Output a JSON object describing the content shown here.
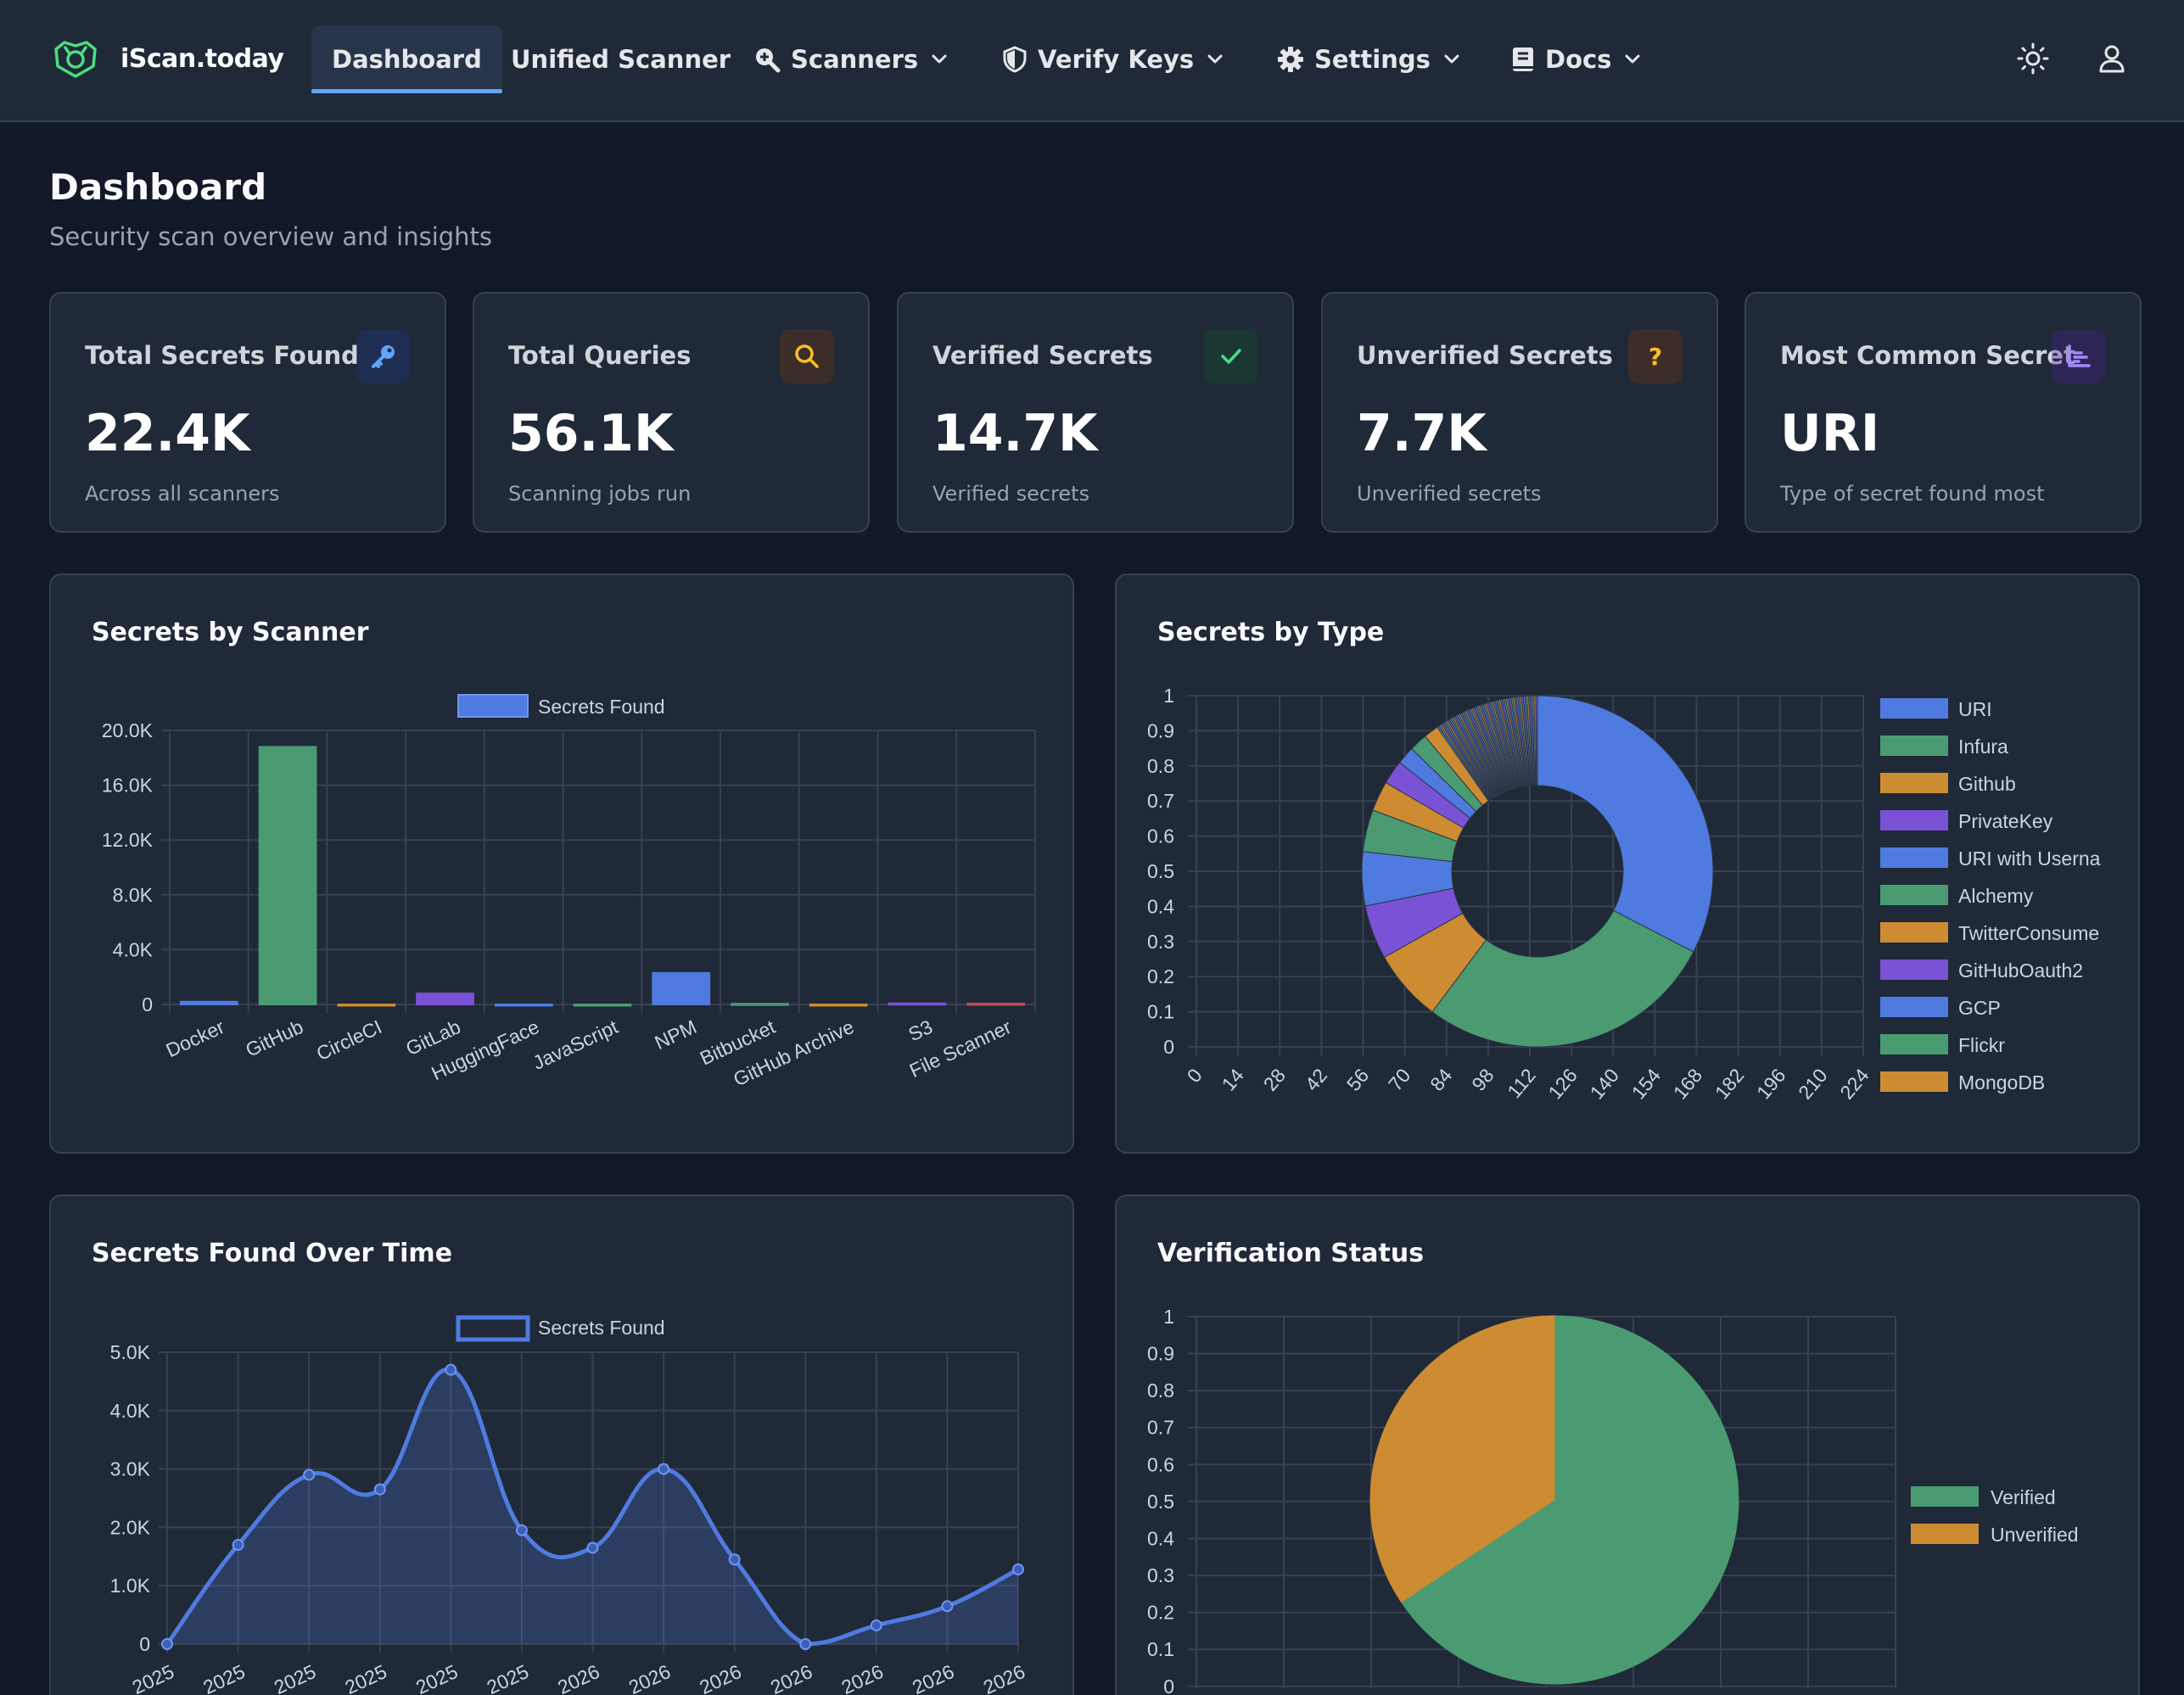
{
  "app": {
    "name": "iScan.today"
  },
  "nav": {
    "dashboard": "Dashboard",
    "unified": "Unified Scanner",
    "scanners": "Scanners",
    "verify": "Verify Keys",
    "settings": "Settings",
    "docs": "Docs"
  },
  "header": {
    "title": "Dashboard",
    "subtitle": "Security scan overview and insights"
  },
  "stats": [
    {
      "title": "Total Secrets Found",
      "value": "22.4K",
      "sub": "Across all scanners",
      "icon": "key-icon",
      "color": "#60a5fa"
    },
    {
      "title": "Total Queries",
      "value": "56.1K",
      "sub": "Scanning jobs run",
      "icon": "search-icon",
      "color": "#fbbf24"
    },
    {
      "title": "Verified Secrets",
      "value": "14.7K",
      "sub": "Verified secrets",
      "icon": "check-icon",
      "color": "#4ade80"
    },
    {
      "title": "Unverified Secrets",
      "value": "7.7K",
      "sub": "Unverified secrets",
      "icon": "question-icon",
      "color": "#fbbf24"
    },
    {
      "title": "Most Common Secret",
      "value": "URI",
      "sub": "Type of secret found most",
      "icon": "bar-chart-icon",
      "color": "#a78bfa"
    }
  ],
  "panels": {
    "scanner": "Secrets by Scanner",
    "type": "Secrets by Type",
    "time": "Secrets Found Over Time",
    "verification": "Verification Status"
  },
  "colors": {
    "blue": "#4f7be0",
    "green": "#4a9b72",
    "orange": "#cd8b32",
    "purple": "#7a52d6",
    "red": "#c0504d"
  },
  "chart_data": [
    {
      "type": "bar",
      "title": "Secrets by Scanner",
      "legend": [
        "Secrets Found"
      ],
      "categories": [
        "Docker",
        "GitHub",
        "CircleCI",
        "GitLab",
        "HuggingFace",
        "JavaScript",
        "NPM",
        "Bitbucket",
        "GitHub Archive",
        "S3",
        "File Scanner"
      ],
      "values": [
        200,
        18800,
        0,
        800,
        0,
        0,
        2300,
        50,
        0,
        80,
        60
      ],
      "bar_colors": [
        "#4f7be0",
        "#4a9b72",
        "#cd8b32",
        "#7a52d6",
        "#4f7be0",
        "#4a9b72",
        "#4f7be0",
        "#4a9b72",
        "#cd8b32",
        "#7a52d6",
        "#c0504d"
      ],
      "yticks": [
        "0",
        "4.0K",
        "8.0K",
        "12.0K",
        "16.0K",
        "20.0K"
      ],
      "ylim": [
        0,
        20000
      ],
      "grid": true,
      "legend_position": "top"
    },
    {
      "type": "pie",
      "title": "Secrets by Type",
      "legend": [
        "URI",
        "Infura",
        "Github",
        "PrivateKey",
        "URI with Userna",
        "Alchemy",
        "TwitterConsume",
        "GitHubOauth2",
        "GCP",
        "Flickr",
        "MongoDB"
      ],
      "values": [
        5900,
        5000,
        1200,
        900,
        900,
        700,
        500,
        400,
        300,
        300,
        250
      ],
      "tail_count": 60,
      "tail_total": 1750,
      "legend_colors": [
        "#4f7be0",
        "#4a9b72",
        "#cd8b32",
        "#7a52d6",
        "#4f7be0",
        "#4a9b72",
        "#cd8b32",
        "#7a52d6",
        "#4f7be0",
        "#4a9b72",
        "#cd8b32"
      ],
      "xticks": [
        "0",
        "14",
        "28",
        "42",
        "56",
        "70",
        "84",
        "98",
        "112",
        "126",
        "140",
        "154",
        "168",
        "182",
        "196",
        "210",
        "224"
      ],
      "yticks": [
        "0",
        "0.1",
        "0.2",
        "0.3",
        "0.4",
        "0.5",
        "0.6",
        "0.7",
        "0.8",
        "0.9",
        "1"
      ],
      "grid": true,
      "legend_position": "right"
    },
    {
      "type": "area",
      "title": "Secrets Found Over Time",
      "legend": [
        "Secrets Found"
      ],
      "x": [
        "2025",
        "2025",
        "2025",
        "2025",
        "2025",
        "2025",
        "2026",
        "2026",
        "2026",
        "2026",
        "2026",
        "2026",
        "2026"
      ],
      "values": [
        0,
        1700,
        2900,
        2650,
        4700,
        1950,
        1650,
        3000,
        1450,
        0,
        320,
        650,
        1280
      ],
      "yticks": [
        "0",
        "1.0K",
        "2.0K",
        "3.0K",
        "4.0K",
        "5.0K"
      ],
      "ylim": [
        0,
        5000
      ],
      "grid": true,
      "legend_position": "top"
    },
    {
      "type": "pie",
      "title": "Verification Status",
      "legend": [
        "Verified",
        "Unverified"
      ],
      "values": [
        14700,
        7700
      ],
      "legend_colors": [
        "#4a9b72",
        "#cd8b32"
      ],
      "yticks": [
        "0",
        "0.1",
        "0.2",
        "0.3",
        "0.4",
        "0.5",
        "0.6",
        "0.7",
        "0.8",
        "0.9",
        "1"
      ],
      "grid": true,
      "legend_position": "right"
    }
  ]
}
